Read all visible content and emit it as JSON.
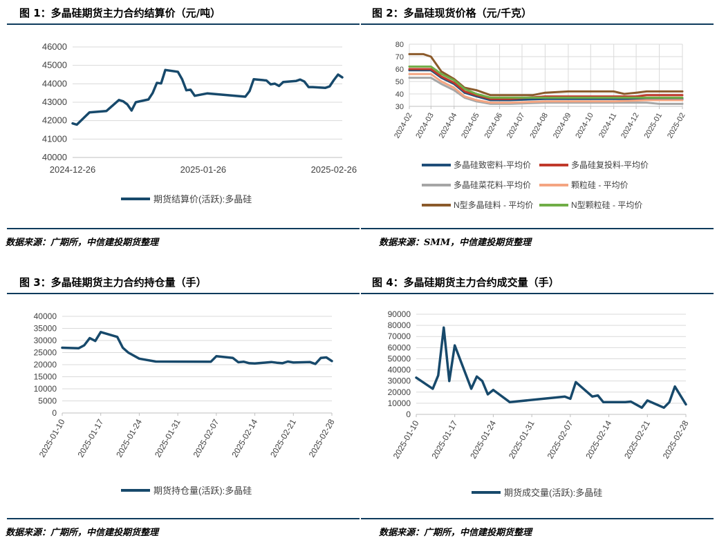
{
  "charts": [
    {
      "title": "图 1：多晶硅期货主力合约结算价（元/吨）",
      "source": "数据来源：广期所，中信建投期货整理"
    },
    {
      "title": "图 2：多晶硅现货价格（元/千克）",
      "source": "数据来源：SMM，中信建投期货整理"
    },
    {
      "title": "图 3：多晶硅期货主力合约持仓量（手）",
      "source": "数据来源：广期所，中信建投期货整理"
    },
    {
      "title": "图 4：多晶硅期货主力合约成交量（手）",
      "source": "数据来源：广期所，中信建投期货整理"
    }
  ],
  "chart_data": [
    {
      "type": "line",
      "title": "图 1：多晶硅期货主力合约结算价（元/吨）",
      "xlim": [
        "2024-12-26",
        "2025-02-28"
      ],
      "x_ticks": [
        "2024-12-26",
        "2025-01-26",
        "2025-02-26"
      ],
      "ylim": [
        40000,
        46000
      ],
      "y_ticks": [
        40000,
        41000,
        42000,
        43000,
        44000,
        45000,
        46000
      ],
      "legend": "bottom",
      "grid": "horizontal",
      "series": [
        {
          "name": "期货结算价(活跃):多晶硅",
          "color": "#17496b",
          "points": [
            [
              "2024-12-26",
              41850
            ],
            [
              "2024-12-27",
              41780
            ],
            [
              "2024-12-30",
              42450
            ],
            [
              "2025-01-02",
              42500
            ],
            [
              "2025-01-03",
              42520
            ],
            [
              "2025-01-06",
              43120
            ],
            [
              "2025-01-07",
              43050
            ],
            [
              "2025-01-08",
              42880
            ],
            [
              "2025-01-09",
              42550
            ],
            [
              "2025-01-10",
              43000
            ],
            [
              "2025-01-13",
              43150
            ],
            [
              "2025-01-14",
              43500
            ],
            [
              "2025-01-15",
              44050
            ],
            [
              "2025-01-16",
              44020
            ],
            [
              "2025-01-17",
              44750
            ],
            [
              "2025-01-20",
              44650
            ],
            [
              "2025-01-21",
              44250
            ],
            [
              "2025-01-22",
              43650
            ],
            [
              "2025-01-23",
              43680
            ],
            [
              "2025-01-24",
              43350
            ],
            [
              "2025-01-27",
              43480
            ],
            [
              "2025-02-05",
              43300
            ],
            [
              "2025-02-06",
              43600
            ],
            [
              "2025-02-07",
              44250
            ],
            [
              "2025-02-10",
              44180
            ],
            [
              "2025-02-11",
              43970
            ],
            [
              "2025-02-12",
              44010
            ],
            [
              "2025-02-13",
              43880
            ],
            [
              "2025-02-14",
              44100
            ],
            [
              "2025-02-17",
              44150
            ],
            [
              "2025-02-18",
              44230
            ],
            [
              "2025-02-19",
              44120
            ],
            [
              "2025-02-20",
              43820
            ],
            [
              "2025-02-21",
              43820
            ],
            [
              "2025-02-24",
              43780
            ],
            [
              "2025-02-25",
              43860
            ],
            [
              "2025-02-26",
              44200
            ],
            [
              "2025-02-27",
              44500
            ],
            [
              "2025-02-28",
              44350
            ]
          ]
        }
      ]
    },
    {
      "type": "line",
      "title": "图 2：多晶硅现货价格（元/千克）",
      "xlim": [
        "2024-02-01",
        "2025-02-01"
      ],
      "x_ticks": [
        "2024-02",
        "2024-03",
        "2024-04",
        "2024-05",
        "2024-06",
        "2024-07",
        "2024-08",
        "2024-09",
        "2024-10",
        "2024-11",
        "2024-12",
        "2025-01",
        "2025-02"
      ],
      "ylim": [
        30,
        80
      ],
      "y_ticks": [
        30,
        40,
        50,
        60,
        70,
        80
      ],
      "legend": "bottom",
      "grid": "both",
      "series": [
        {
          "name": "多晶硅致密料-平均价",
          "color": "#1f4e79",
          "points": [
            [
              "2024-02-01",
              59
            ],
            [
              "2024-03-01",
              59
            ],
            [
              "2024-03-15",
              53
            ],
            [
              "2024-04-01",
              48
            ],
            [
              "2024-04-15",
              41
            ],
            [
              "2024-05-01",
              38
            ],
            [
              "2024-05-20",
              35
            ],
            [
              "2024-06-15",
              35
            ],
            [
              "2024-08-01",
              36
            ],
            [
              "2024-11-01",
              36
            ],
            [
              "2024-12-15",
              36
            ],
            [
              "2025-02-01",
              36
            ]
          ]
        },
        {
          "name": "多晶硅复投料-平均价",
          "color": "#c0392b",
          "points": [
            [
              "2024-02-01",
              60
            ],
            [
              "2024-03-01",
              60
            ],
            [
              "2024-03-15",
              54
            ],
            [
              "2024-04-01",
              49
            ],
            [
              "2024-04-15",
              42
            ],
            [
              "2024-05-01",
              39
            ],
            [
              "2024-05-20",
              36
            ],
            [
              "2024-06-15",
              36
            ],
            [
              "2024-08-01",
              38
            ],
            [
              "2024-11-01",
              38
            ],
            [
              "2024-12-01",
              38
            ],
            [
              "2024-12-15",
              39
            ],
            [
              "2025-02-01",
              39
            ]
          ]
        },
        {
          "name": "多晶硅菜花料-平均价",
          "color": "#a6a6a6",
          "points": [
            [
              "2024-02-01",
              53
            ],
            [
              "2024-03-01",
              53
            ],
            [
              "2024-03-15",
              48
            ],
            [
              "2024-04-01",
              43
            ],
            [
              "2024-04-15",
              37
            ],
            [
              "2024-05-01",
              34
            ],
            [
              "2024-05-20",
              32
            ],
            [
              "2024-06-15",
              32
            ],
            [
              "2024-08-01",
              33
            ],
            [
              "2024-11-01",
              33
            ],
            [
              "2024-12-15",
              33
            ],
            [
              "2025-01-01",
              32
            ],
            [
              "2025-02-01",
              32
            ]
          ]
        },
        {
          "name": "颗粒硅 - 平均价",
          "color": "#f4a582",
          "points": [
            [
              "2024-02-01",
              56
            ],
            [
              "2024-03-01",
              56
            ],
            [
              "2024-03-15",
              50
            ],
            [
              "2024-04-01",
              45
            ],
            [
              "2024-04-15",
              38
            ],
            [
              "2024-05-01",
              35
            ],
            [
              "2024-05-20",
              33
            ],
            [
              "2024-06-15",
              33
            ],
            [
              "2024-08-01",
              34
            ],
            [
              "2024-11-01",
              34
            ],
            [
              "2024-12-15",
              35
            ],
            [
              "2025-02-01",
              35
            ]
          ]
        },
        {
          "name": "N型多晶硅料 - 平均价",
          "color": "#8b5a2b",
          "points": [
            [
              "2024-02-01",
              72
            ],
            [
              "2024-02-20",
              72
            ],
            [
              "2024-03-01",
              70
            ],
            [
              "2024-03-15",
              58
            ],
            [
              "2024-04-01",
              52
            ],
            [
              "2024-04-15",
              45
            ],
            [
              "2024-05-01",
              43
            ],
            [
              "2024-05-20",
              39
            ],
            [
              "2024-06-15",
              39
            ],
            [
              "2024-07-15",
              39
            ],
            [
              "2024-08-01",
              41
            ],
            [
              "2024-09-01",
              42
            ],
            [
              "2024-10-01",
              42
            ],
            [
              "2024-11-01",
              42
            ],
            [
              "2024-11-15",
              40
            ],
            [
              "2024-12-01",
              41
            ],
            [
              "2024-12-15",
              42
            ],
            [
              "2025-02-01",
              42
            ]
          ]
        },
        {
          "name": "N型颗粒硅 - 平均价",
          "color": "#70ad47",
          "points": [
            [
              "2024-02-01",
              62
            ],
            [
              "2024-03-01",
              62
            ],
            [
              "2024-03-15",
              56
            ],
            [
              "2024-04-01",
              51
            ],
            [
              "2024-04-15",
              44
            ],
            [
              "2024-05-01",
              40
            ],
            [
              "2024-05-20",
              37
            ],
            [
              "2024-06-15",
              37
            ],
            [
              "2024-08-01",
              37
            ],
            [
              "2024-11-01",
              37
            ],
            [
              "2024-12-15",
              37
            ],
            [
              "2025-02-01",
              37
            ]
          ]
        }
      ]
    },
    {
      "type": "line",
      "title": "图 3：多晶硅期货主力合约持仓量（手）",
      "xlim": [
        "2025-01-10",
        "2025-02-28"
      ],
      "x_ticks": [
        "2025-01-10",
        "2025-01-17",
        "2025-01-24",
        "2025-01-31",
        "2025-02-07",
        "2025-02-14",
        "2025-02-21",
        "2025-02-28"
      ],
      "ylim": [
        0,
        40000
      ],
      "y_ticks": [
        0,
        5000,
        10000,
        15000,
        20000,
        25000,
        30000,
        35000,
        40000
      ],
      "legend": "bottom",
      "grid": "horizontal",
      "series": [
        {
          "name": "期货持仓量(活跃):多晶硅",
          "color": "#17496b",
          "points": [
            [
              "2025-01-10",
              27000
            ],
            [
              "2025-01-13",
              26800
            ],
            [
              "2025-01-14",
              28000
            ],
            [
              "2025-01-15",
              31000
            ],
            [
              "2025-01-16",
              29800
            ],
            [
              "2025-01-17",
              33500
            ],
            [
              "2025-01-20",
              31500
            ],
            [
              "2025-01-21",
              27000
            ],
            [
              "2025-01-22",
              25000
            ],
            [
              "2025-01-24",
              22500
            ],
            [
              "2025-01-27",
              21300
            ],
            [
              "2025-02-06",
              21200
            ],
            [
              "2025-02-07",
              23500
            ],
            [
              "2025-02-10",
              22800
            ],
            [
              "2025-02-11",
              21000
            ],
            [
              "2025-02-12",
              21200
            ],
            [
              "2025-02-13",
              20600
            ],
            [
              "2025-02-14",
              20500
            ],
            [
              "2025-02-17",
              21100
            ],
            [
              "2025-02-18",
              20800
            ],
            [
              "2025-02-19",
              20600
            ],
            [
              "2025-02-20",
              21300
            ],
            [
              "2025-02-21",
              20900
            ],
            [
              "2025-02-24",
              21100
            ],
            [
              "2025-02-25",
              20300
            ],
            [
              "2025-02-26",
              22800
            ],
            [
              "2025-02-27",
              23000
            ],
            [
              "2025-02-28",
              21500
            ]
          ]
        }
      ]
    },
    {
      "type": "line",
      "title": "图 4：多晶硅期货主力合约成交量（手）",
      "xlim": [
        "2025-01-10",
        "2025-02-28"
      ],
      "x_ticks": [
        "2025-01-10",
        "2025-01-17",
        "2025-01-24",
        "2025-01-31",
        "2025-02-07",
        "2025-02-14",
        "2025-02-21",
        "2025-02-28"
      ],
      "ylim": [
        0,
        90000
      ],
      "y_ticks": [
        0,
        10000,
        20000,
        30000,
        40000,
        50000,
        60000,
        70000,
        80000,
        90000
      ],
      "legend": "bottom",
      "grid": "horizontal",
      "series": [
        {
          "name": "期货成交量(活跃):多晶硅",
          "color": "#17496b",
          "points": [
            [
              "2025-01-10",
              33000
            ],
            [
              "2025-01-13",
              23000
            ],
            [
              "2025-01-14",
              35000
            ],
            [
              "2025-01-15",
              78000
            ],
            [
              "2025-01-16",
              30000
            ],
            [
              "2025-01-17",
              62000
            ],
            [
              "2025-01-20",
              23000
            ],
            [
              "2025-01-21",
              34000
            ],
            [
              "2025-01-22",
              30000
            ],
            [
              "2025-01-23",
              18000
            ],
            [
              "2025-01-24",
              22000
            ],
            [
              "2025-01-27",
              11000
            ],
            [
              "2025-02-06",
              16000
            ],
            [
              "2025-02-07",
              14000
            ],
            [
              "2025-02-08",
              29000
            ],
            [
              "2025-02-11",
              16000
            ],
            [
              "2025-02-12",
              17000
            ],
            [
              "2025-02-13",
              11000
            ],
            [
              "2025-02-14",
              11000
            ],
            [
              "2025-02-17",
              11000
            ],
            [
              "2025-02-18",
              11500
            ],
            [
              "2025-02-20",
              6000
            ],
            [
              "2025-02-21",
              12500
            ],
            [
              "2025-02-24",
              6000
            ],
            [
              "2025-02-25",
              11000
            ],
            [
              "2025-02-26",
              25000
            ],
            [
              "2025-02-28",
              9000
            ]
          ]
        }
      ]
    }
  ]
}
